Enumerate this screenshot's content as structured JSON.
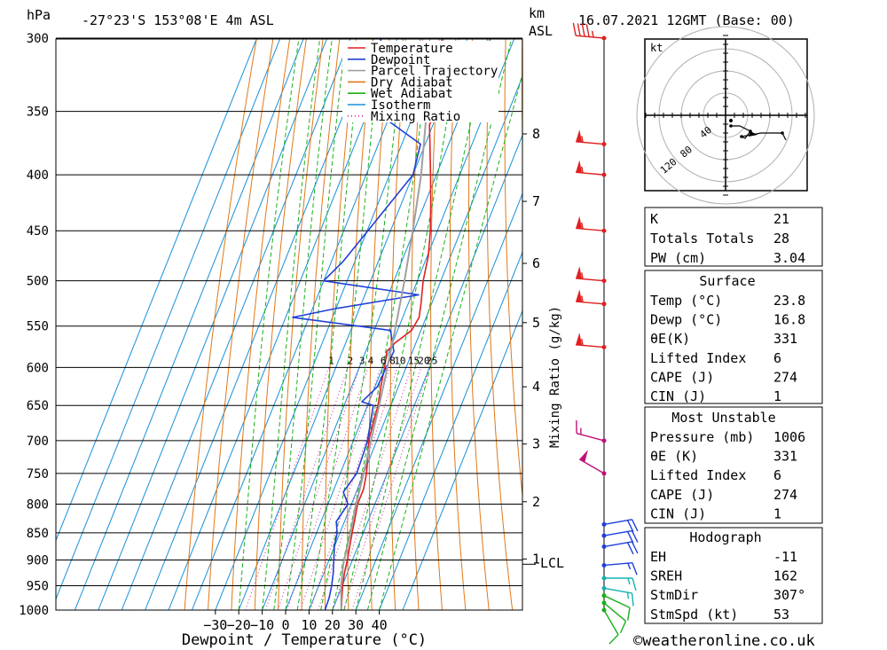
{
  "header": {
    "hpa_label": "hPa",
    "location": "-27°23'S 153°08'E 4m ASL",
    "km_label": "km",
    "asl_label": "ASL",
    "datetime": "16.07.2021 12GMT (Base: 00)"
  },
  "chart_data": {
    "type": "skew-t log-p",
    "xlabel": "Dewpoint / Temperature (°C)",
    "ylabel": "hPa",
    "x_ticks": [
      -30,
      -20,
      -10,
      0,
      10,
      20,
      30,
      40
    ],
    "pressure_levels": [
      300,
      350,
      400,
      450,
      500,
      550,
      600,
      650,
      700,
      750,
      800,
      850,
      900,
      950,
      1000
    ],
    "km_ticks": [
      {
        "label": "8",
        "p": 367
      },
      {
        "label": "7",
        "p": 423
      },
      {
        "label": "6",
        "p": 482
      },
      {
        "label": "5",
        "p": 546
      },
      {
        "label": "4",
        "p": 625
      },
      {
        "label": "3",
        "p": 705
      },
      {
        "label": "2",
        "p": 796
      },
      {
        "label": "1",
        "p": 898
      }
    ],
    "lcl_label": "LCL",
    "lcl_pressure": 908,
    "mixing_ratio_axis_label": "Mixing Ratio (g/kg)",
    "mixing_ratio_labels": [
      "1",
      "2",
      "3",
      "4",
      "6",
      "8",
      "10",
      "15",
      "20",
      "25"
    ],
    "mixing_ratio_values": [
      1,
      2,
      3,
      4,
      6,
      8,
      10,
      15,
      20,
      25
    ],
    "legend": [
      {
        "label": "Temperature",
        "color": "#e02020"
      },
      {
        "label": "Dewpoint",
        "color": "#2040d8"
      },
      {
        "label": "Parcel Trajectory",
        "color": "#a0a0a0"
      },
      {
        "label": "Dry Adiabat",
        "color": "#e07818"
      },
      {
        "label": "Wet Adiabat",
        "color": "#18b018"
      },
      {
        "label": "Isotherm",
        "color": "#1890d8"
      },
      {
        "label": "Mixing Ratio",
        "color": "#d020a0"
      }
    ],
    "series": [
      {
        "name": "Temperature",
        "points": [
          [
            1000,
            23.8
          ],
          [
            975,
            22
          ],
          [
            950,
            20.2
          ],
          [
            925,
            18.8
          ],
          [
            900,
            17.8
          ],
          [
            875,
            16.5
          ],
          [
            850,
            15.2
          ],
          [
            825,
            14
          ],
          [
            800,
            12.6
          ],
          [
            775,
            12.6
          ],
          [
            750,
            11.2
          ],
          [
            725,
            9
          ],
          [
            700,
            6.5
          ],
          [
            675,
            5.5
          ],
          [
            650,
            4.5
          ],
          [
            625,
            2.5
          ],
          [
            600,
            0.8
          ],
          [
            580,
            -1
          ],
          [
            570,
            1
          ],
          [
            555,
            6
          ],
          [
            540,
            7
          ],
          [
            525,
            5.5
          ],
          [
            500,
            2.5
          ],
          [
            475,
            0.5
          ],
          [
            450,
            -3
          ],
          [
            425,
            -7.5
          ],
          [
            400,
            -12.5
          ],
          [
            375,
            -18
          ],
          [
            360,
            -21.5
          ],
          [
            350,
            -21
          ],
          [
            325,
            -25.5
          ],
          [
            300,
            -31
          ]
        ]
      },
      {
        "name": "Dewpoint",
        "points": [
          [
            1000,
            16.8
          ],
          [
            975,
            16.5
          ],
          [
            950,
            15.5
          ],
          [
            925,
            14
          ],
          [
            900,
            12
          ],
          [
            875,
            10
          ],
          [
            850,
            8.8
          ],
          [
            830,
            6.5
          ],
          [
            800,
            8.5
          ],
          [
            780,
            4.5
          ],
          [
            750,
            7
          ],
          [
            720,
            6.5
          ],
          [
            700,
            6
          ],
          [
            650,
            2.5
          ],
          [
            645,
            -3
          ],
          [
            625,
            1
          ],
          [
            600,
            1.5
          ],
          [
            580,
            2
          ],
          [
            565,
            -1
          ],
          [
            555,
            -3
          ],
          [
            540,
            -47
          ],
          [
            530,
            -30
          ],
          [
            515,
            3
          ],
          [
            500,
            -40
          ],
          [
            480,
            -35
          ],
          [
            400,
            -20
          ],
          [
            375,
            -22
          ],
          [
            350,
            -47
          ],
          [
            300,
            -57
          ]
        ]
      },
      {
        "name": "Parcel Trajectory",
        "points": [
          [
            1000,
            23.8
          ],
          [
            950,
            19.5
          ],
          [
            908,
            16.8
          ],
          [
            850,
            14.5
          ],
          [
            800,
            12
          ],
          [
            750,
            10
          ],
          [
            700,
            7.5
          ],
          [
            650,
            5
          ],
          [
            600,
            2
          ],
          [
            550,
            -1.5
          ],
          [
            500,
            -5.5
          ],
          [
            450,
            -10.5
          ],
          [
            400,
            -16.5
          ],
          [
            350,
            -25
          ],
          [
            310,
            -33
          ]
        ]
      }
    ],
    "wind_barbs": [
      {
        "p": 1000,
        "dir": 150,
        "spd": 10
      },
      {
        "p": 985,
        "dir": 130,
        "spd": 10
      },
      {
        "p": 970,
        "dir": 115,
        "spd": 10
      },
      {
        "p": 955,
        "dir": 100,
        "spd": 15
      },
      {
        "p": 935,
        "dir": 90,
        "spd": 15
      },
      {
        "p": 910,
        "dir": 85,
        "spd": 15
      },
      {
        "p": 875,
        "dir": 80,
        "spd": 20
      },
      {
        "p": 855,
        "dir": 80,
        "spd": 20
      },
      {
        "p": 835,
        "dir": 80,
        "spd": 20
      },
      {
        "p": 750,
        "dir": 300,
        "spd": 50
      },
      {
        "p": 700,
        "dir": 285,
        "spd": 15
      },
      {
        "p": 575,
        "dir": 275,
        "spd": 55
      },
      {
        "p": 525,
        "dir": 275,
        "spd": 55
      },
      {
        "p": 500,
        "dir": 275,
        "spd": 55
      },
      {
        "p": 450,
        "dir": 275,
        "spd": 55
      },
      {
        "p": 400,
        "dir": 275,
        "spd": 55
      },
      {
        "p": 375,
        "dir": 275,
        "spd": 55
      },
      {
        "p": 300,
        "dir": 275,
        "spd": 45
      }
    ]
  },
  "hodograph": {
    "unit_label": "kt",
    "ring_labels": [
      "40",
      "80",
      "120"
    ],
    "points": [
      [
        6,
        -12
      ],
      [
        16,
        -12
      ],
      [
        28,
        -18
      ],
      [
        22,
        -26
      ],
      [
        18,
        -24
      ],
      [
        40,
        -20
      ],
      [
        64,
        -20
      ],
      [
        68,
        -28
      ]
    ]
  },
  "indices": [
    {
      "label": "K",
      "value": "21"
    },
    {
      "label": "Totals Totals",
      "value": "28"
    },
    {
      "label": "PW (cm)",
      "value": "3.04"
    }
  ],
  "surface": {
    "title": "Surface",
    "rows": [
      {
        "label": "Temp (°C)",
        "value": "23.8"
      },
      {
        "label": "Dewp (°C)",
        "value": "16.8"
      },
      {
        "label": "θE(K)",
        "value": "331"
      },
      {
        "label": "Lifted Index",
        "value": "6"
      },
      {
        "label": "CAPE (J)",
        "value": "274"
      },
      {
        "label": "CIN (J)",
        "value": "1"
      }
    ]
  },
  "most_unstable": {
    "title": "Most Unstable",
    "rows": [
      {
        "label": "Pressure (mb)",
        "value": "1006"
      },
      {
        "label": "θE (K)",
        "value": "331"
      },
      {
        "label": "Lifted Index",
        "value": "6"
      },
      {
        "label": "CAPE (J)",
        "value": "274"
      },
      {
        "label": "CIN (J)",
        "value": "1"
      }
    ]
  },
  "hodograph_params": {
    "title": "Hodograph",
    "rows": [
      {
        "label": "EH",
        "value": "-11"
      },
      {
        "label": "SREH",
        "value": "162"
      },
      {
        "label": "StmDir",
        "value": "307°"
      },
      {
        "label": "StmSpd (kt)",
        "value": "53"
      }
    ]
  },
  "footer": {
    "copyright": "©weatheronline.co.uk"
  }
}
